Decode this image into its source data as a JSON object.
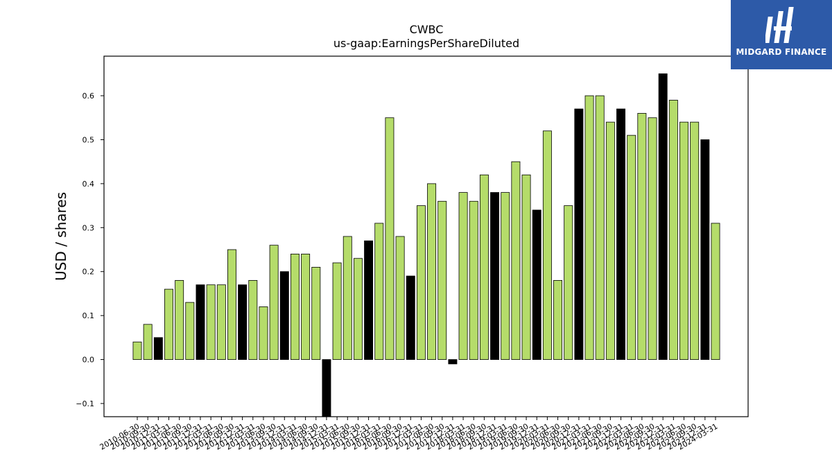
{
  "chart_data": {
    "type": "bar",
    "title": "CWBC",
    "subtitle": "us-gaap:EarningsPerShareDiluted",
    "xlabel": "",
    "ylabel": "USD / shares",
    "ylim": [
      -0.13,
      0.69
    ],
    "yticks": [
      -0.1,
      0.0,
      0.1,
      0.2,
      0.3,
      0.4,
      0.5,
      0.6
    ],
    "ytick_labels": [
      "−0.1",
      "0.0",
      "0.1",
      "0.2",
      "0.3",
      "0.4",
      "0.5",
      "0.6"
    ],
    "grid": false,
    "colors": {
      "quarter": "#b5dc6a",
      "year_end": "#000000",
      "edge": "#000000"
    },
    "categories": [
      "2010-06-30",
      "2010-09-30",
      "2010-12-31",
      "2011-03-31",
      "2011-06-30",
      "2011-09-30",
      "2011-12-31",
      "2012-03-31",
      "2012-06-30",
      "2012-09-30",
      "2012-12-31",
      "2013-03-31",
      "2013-06-30",
      "2013-09-30",
      "2013-12-31",
      "2014-03-31",
      "2014-06-30",
      "2014-09-30",
      "2014-12-31",
      "2015-03-31",
      "2015-06-30",
      "2015-09-30",
      "2015-12-31",
      "2016-03-31",
      "2016-06-30",
      "2016-09-30",
      "2016-12-31",
      "2017-03-31",
      "2017-06-30",
      "2017-09-30",
      "2017-12-31",
      "2018-03-31",
      "2018-06-30",
      "2018-09-30",
      "2018-12-31",
      "2019-03-31",
      "2019-06-30",
      "2019-09-30",
      "2019-12-31",
      "2020-03-31",
      "2020-06-30",
      "2020-09-30",
      "2020-12-31",
      "2021-03-31",
      "2021-06-30",
      "2021-09-30",
      "2021-12-31",
      "2022-03-31",
      "2022-06-30",
      "2022-09-30",
      "2022-12-31",
      "2023-03-31",
      "2023-06-30",
      "2023-09-30",
      "2023-12-31",
      "2024-03-31"
    ],
    "values": [
      0.04,
      0.08,
      0.05,
      0.16,
      0.18,
      0.13,
      0.17,
      0.17,
      0.17,
      0.25,
      0.17,
      0.18,
      0.12,
      0.26,
      0.2,
      0.24,
      0.24,
      0.21,
      -0.15,
      0.22,
      0.28,
      0.23,
      0.27,
      0.31,
      0.55,
      0.28,
      0.19,
      0.35,
      0.4,
      0.36,
      -0.01,
      0.38,
      0.36,
      0.42,
      0.38,
      0.38,
      0.45,
      0.42,
      0.34,
      0.52,
      0.18,
      0.35,
      0.57,
      0.6,
      0.6,
      0.54,
      0.57,
      0.51,
      0.56,
      0.55,
      0.65,
      0.59,
      0.54,
      0.54,
      0.5,
      0.31
    ],
    "year_end": [
      false,
      false,
      true,
      false,
      false,
      false,
      true,
      false,
      false,
      false,
      true,
      false,
      false,
      false,
      true,
      false,
      false,
      false,
      true,
      false,
      false,
      false,
      true,
      false,
      false,
      false,
      true,
      false,
      false,
      false,
      true,
      false,
      false,
      false,
      true,
      false,
      false,
      false,
      true,
      false,
      false,
      false,
      true,
      false,
      false,
      false,
      true,
      false,
      false,
      false,
      true,
      false,
      false,
      false,
      true,
      false
    ]
  },
  "logo": {
    "text": "MIDGARD FINANCE"
  }
}
